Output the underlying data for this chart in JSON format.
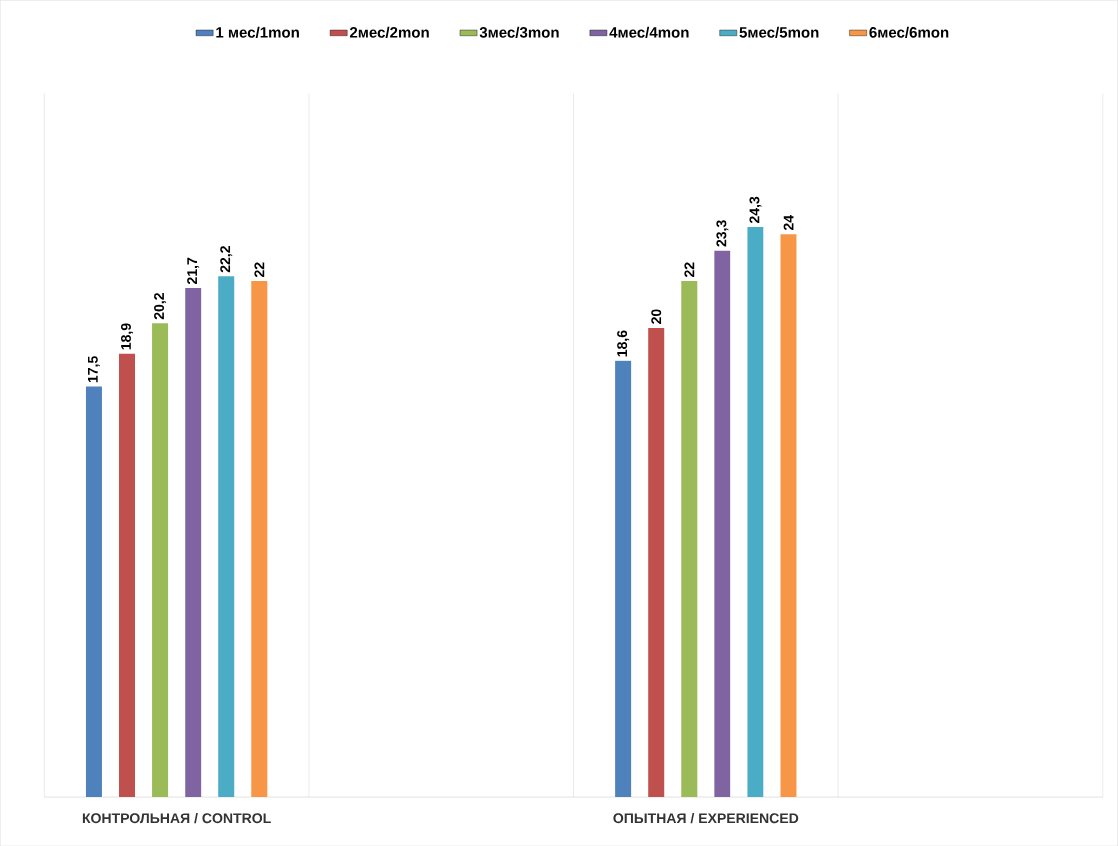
{
  "chart_data": {
    "type": "bar",
    "categories": [
      "КОНТРОЛЬНАЯ / CONTROL",
      null,
      "ОПЫТНАЯ / EXPERIENCED",
      null
    ],
    "ylim": [
      0,
      30
    ],
    "legend": "top",
    "grid": "x",
    "tick_labels": "x",
    "series": [
      {
        "name": "1 мес/1mon",
        "color": "#4f81bd",
        "values": [
          17.5,
          null,
          18.6,
          null
        ],
        "value_labels": [
          "17,5",
          null,
          "18,6",
          null
        ]
      },
      {
        "name": "2мес/2mon",
        "color": "#c0504d",
        "values": [
          18.9,
          null,
          20,
          null
        ],
        "value_labels": [
          "18,9",
          null,
          "20",
          null
        ]
      },
      {
        "name": "3мес/3mon",
        "color": "#9bbb59",
        "values": [
          20.2,
          null,
          22,
          null
        ],
        "value_labels": [
          "20,2",
          null,
          "22",
          null
        ]
      },
      {
        "name": "4мес/4mon",
        "color": "#8064a2",
        "values": [
          21.7,
          null,
          23.3,
          null
        ],
        "value_labels": [
          "21,7",
          null,
          "23,3",
          null
        ]
      },
      {
        "name": "5мес/5mon",
        "color": "#4bacc6",
        "values": [
          22.2,
          null,
          24.3,
          null
        ],
        "value_labels": [
          "22,2",
          null,
          "24,3",
          null
        ]
      },
      {
        "name": "6мес/6mon",
        "color": "#f79646",
        "values": [
          22,
          null,
          24,
          null
        ],
        "value_labels": [
          "22",
          null,
          "24",
          null
        ]
      }
    ]
  }
}
